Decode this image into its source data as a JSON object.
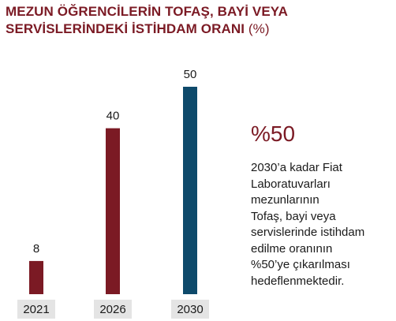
{
  "title": {
    "line1": "MEZUN ÖĞRENCİLERİN TOFAŞ, BAYİ VEYA",
    "line2": "SERVİSLERİNDEKİ İSTİHDAM ORANI",
    "unit": "(%)"
  },
  "highlight": {
    "value": "%50",
    "lines": [
      "2030’a kadar Fiat",
      "Laboratuvarları",
      "mezunlarının",
      "Tofaş, bayi veya",
      "servislerinde istihdam",
      "edilme oranının",
      "%50’ye çıkarılması",
      "hedeflenmektedir."
    ]
  },
  "colors": {
    "maroon": "#7b1a24",
    "navy": "#0e4a6b",
    "tick_bg": "#e4e4e4"
  },
  "chart_data": {
    "type": "bar",
    "categories": [
      "2021",
      "2026",
      "2030"
    ],
    "values": [
      8,
      40,
      50
    ],
    "data_labels": [
      "8",
      "40",
      "50"
    ],
    "bar_colors": [
      "#7b1a24",
      "#7b1a24",
      "#0e4a6b"
    ],
    "ylim": [
      0,
      50
    ],
    "grid": false,
    "legend": "none"
  }
}
